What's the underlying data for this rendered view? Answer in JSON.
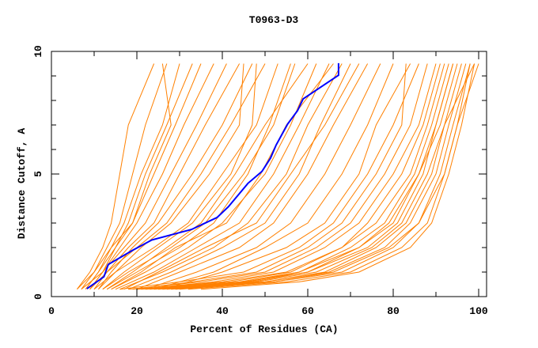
{
  "chart_data": {
    "type": "line",
    "title": "T0963-D3",
    "xlabel": "Percent of Residues (CA)",
    "ylabel": "Distance Cutoff, A",
    "xlim": [
      0,
      102
    ],
    "ylim": [
      0,
      10
    ],
    "xticks": [
      0,
      20,
      40,
      60,
      80,
      100
    ],
    "yticks": [
      0,
      5,
      10
    ],
    "grid": false,
    "colors": {
      "others": "#ff8000",
      "highlight": "#0000ff",
      "axis": "#000000"
    },
    "highlight_series": {
      "name": "highlight",
      "points": [
        [
          8.3,
          0.32
        ],
        [
          12.3,
          0.81
        ],
        [
          13.3,
          1.31
        ],
        [
          18.9,
          1.88
        ],
        [
          23.5,
          2.31
        ],
        [
          32.8,
          2.74
        ],
        [
          38.8,
          3.23
        ],
        [
          41.4,
          3.66
        ],
        [
          46.0,
          4.62
        ],
        [
          49.3,
          5.11
        ],
        [
          51.3,
          5.65
        ],
        [
          52.6,
          6.18
        ],
        [
          55.3,
          7.04
        ],
        [
          57.6,
          7.58
        ],
        [
          58.9,
          8.06
        ],
        [
          67.2,
          9.03
        ],
        [
          67.2,
          9.52
        ]
      ]
    },
    "series_y_levels_left": [
      0.3,
      1,
      2,
      3,
      5,
      7,
      9.5
    ],
    "series_y_levels_right": [
      0.3,
      0.6,
      1,
      2,
      3,
      5,
      7,
      9.5
    ],
    "series_left": [
      [
        6,
        9,
        12,
        14,
        16,
        18,
        24
      ],
      [
        7,
        10,
        13,
        16,
        19,
        22,
        27
      ],
      [
        8,
        11,
        15,
        18,
        22,
        27,
        33
      ],
      [
        6,
        10,
        14,
        19,
        24,
        29,
        35
      ],
      [
        9,
        12,
        16,
        20,
        26,
        31,
        38
      ],
      [
        7,
        12,
        17,
        22,
        28,
        34,
        41
      ],
      [
        10,
        13,
        18,
        24,
        30,
        36,
        44
      ],
      [
        8,
        11,
        14,
        17,
        21,
        26,
        30
      ],
      [
        11,
        14,
        19,
        25,
        33,
        40,
        47
      ],
      [
        9,
        13,
        20,
        27,
        35,
        42,
        50
      ],
      [
        10,
        15,
        24,
        32,
        40,
        48,
        53
      ],
      [
        12,
        18,
        28,
        36,
        45,
        52,
        57
      ],
      [
        13,
        20,
        30,
        38,
        46,
        51,
        56
      ],
      [
        14,
        22,
        32,
        40,
        50,
        56,
        62
      ],
      [
        15,
        24,
        34,
        44,
        52,
        58,
        65
      ],
      [
        16,
        26,
        38,
        46,
        55,
        60,
        68
      ],
      [
        18,
        28,
        40,
        50,
        58,
        63,
        70
      ],
      [
        20,
        30,
        44,
        52,
        60,
        66,
        74
      ],
      [
        17,
        25,
        36,
        48,
        56,
        64,
        72
      ],
      [
        22,
        34,
        48,
        56,
        64,
        70,
        77
      ],
      [
        24,
        38,
        50,
        60,
        68,
        74,
        80
      ],
      [
        26,
        40,
        55,
        64,
        72,
        76,
        84
      ],
      [
        9,
        12,
        15,
        19,
        23,
        28,
        26
      ],
      [
        11,
        15,
        21,
        28,
        37,
        44,
        45
      ],
      [
        12,
        17,
        25,
        33,
        42,
        47,
        48
      ],
      [
        13,
        19,
        27,
        35,
        43,
        50,
        60
      ],
      [
        14,
        21,
        29,
        41,
        49,
        55,
        66
      ]
    ],
    "series_right": [
      [
        20,
        40,
        55,
        68,
        76,
        84,
        88,
        92
      ],
      [
        22,
        45,
        60,
        72,
        80,
        86,
        90,
        94
      ],
      [
        25,
        48,
        62,
        75,
        82,
        88,
        92,
        96
      ],
      [
        28,
        50,
        65,
        78,
        84,
        90,
        93,
        97
      ],
      [
        30,
        52,
        68,
        80,
        86,
        91,
        94,
        98
      ],
      [
        24,
        46,
        58,
        70,
        78,
        85,
        89,
        93
      ],
      [
        26,
        50,
        64,
        76,
        83,
        89,
        92,
        99
      ],
      [
        32,
        55,
        70,
        82,
        88,
        92,
        95,
        100
      ],
      [
        21,
        42,
        56,
        68,
        74,
        82,
        87,
        91
      ],
      [
        23,
        44,
        58,
        72,
        79,
        86,
        91,
        95
      ],
      [
        35,
        58,
        72,
        84,
        89,
        93,
        96,
        99
      ],
      [
        27,
        47,
        60,
        74,
        81,
        87,
        90,
        94
      ],
      [
        20,
        38,
        52,
        64,
        72,
        80,
        86,
        90
      ],
      [
        18,
        35,
        50,
        62,
        70,
        78,
        84,
        88
      ],
      [
        29,
        52,
        66,
        79,
        86,
        92,
        95,
        98
      ],
      [
        16,
        30,
        45,
        58,
        66,
        74,
        80,
        86
      ],
      [
        19,
        33,
        48,
        60,
        68,
        76,
        82,
        83
      ]
    ]
  }
}
